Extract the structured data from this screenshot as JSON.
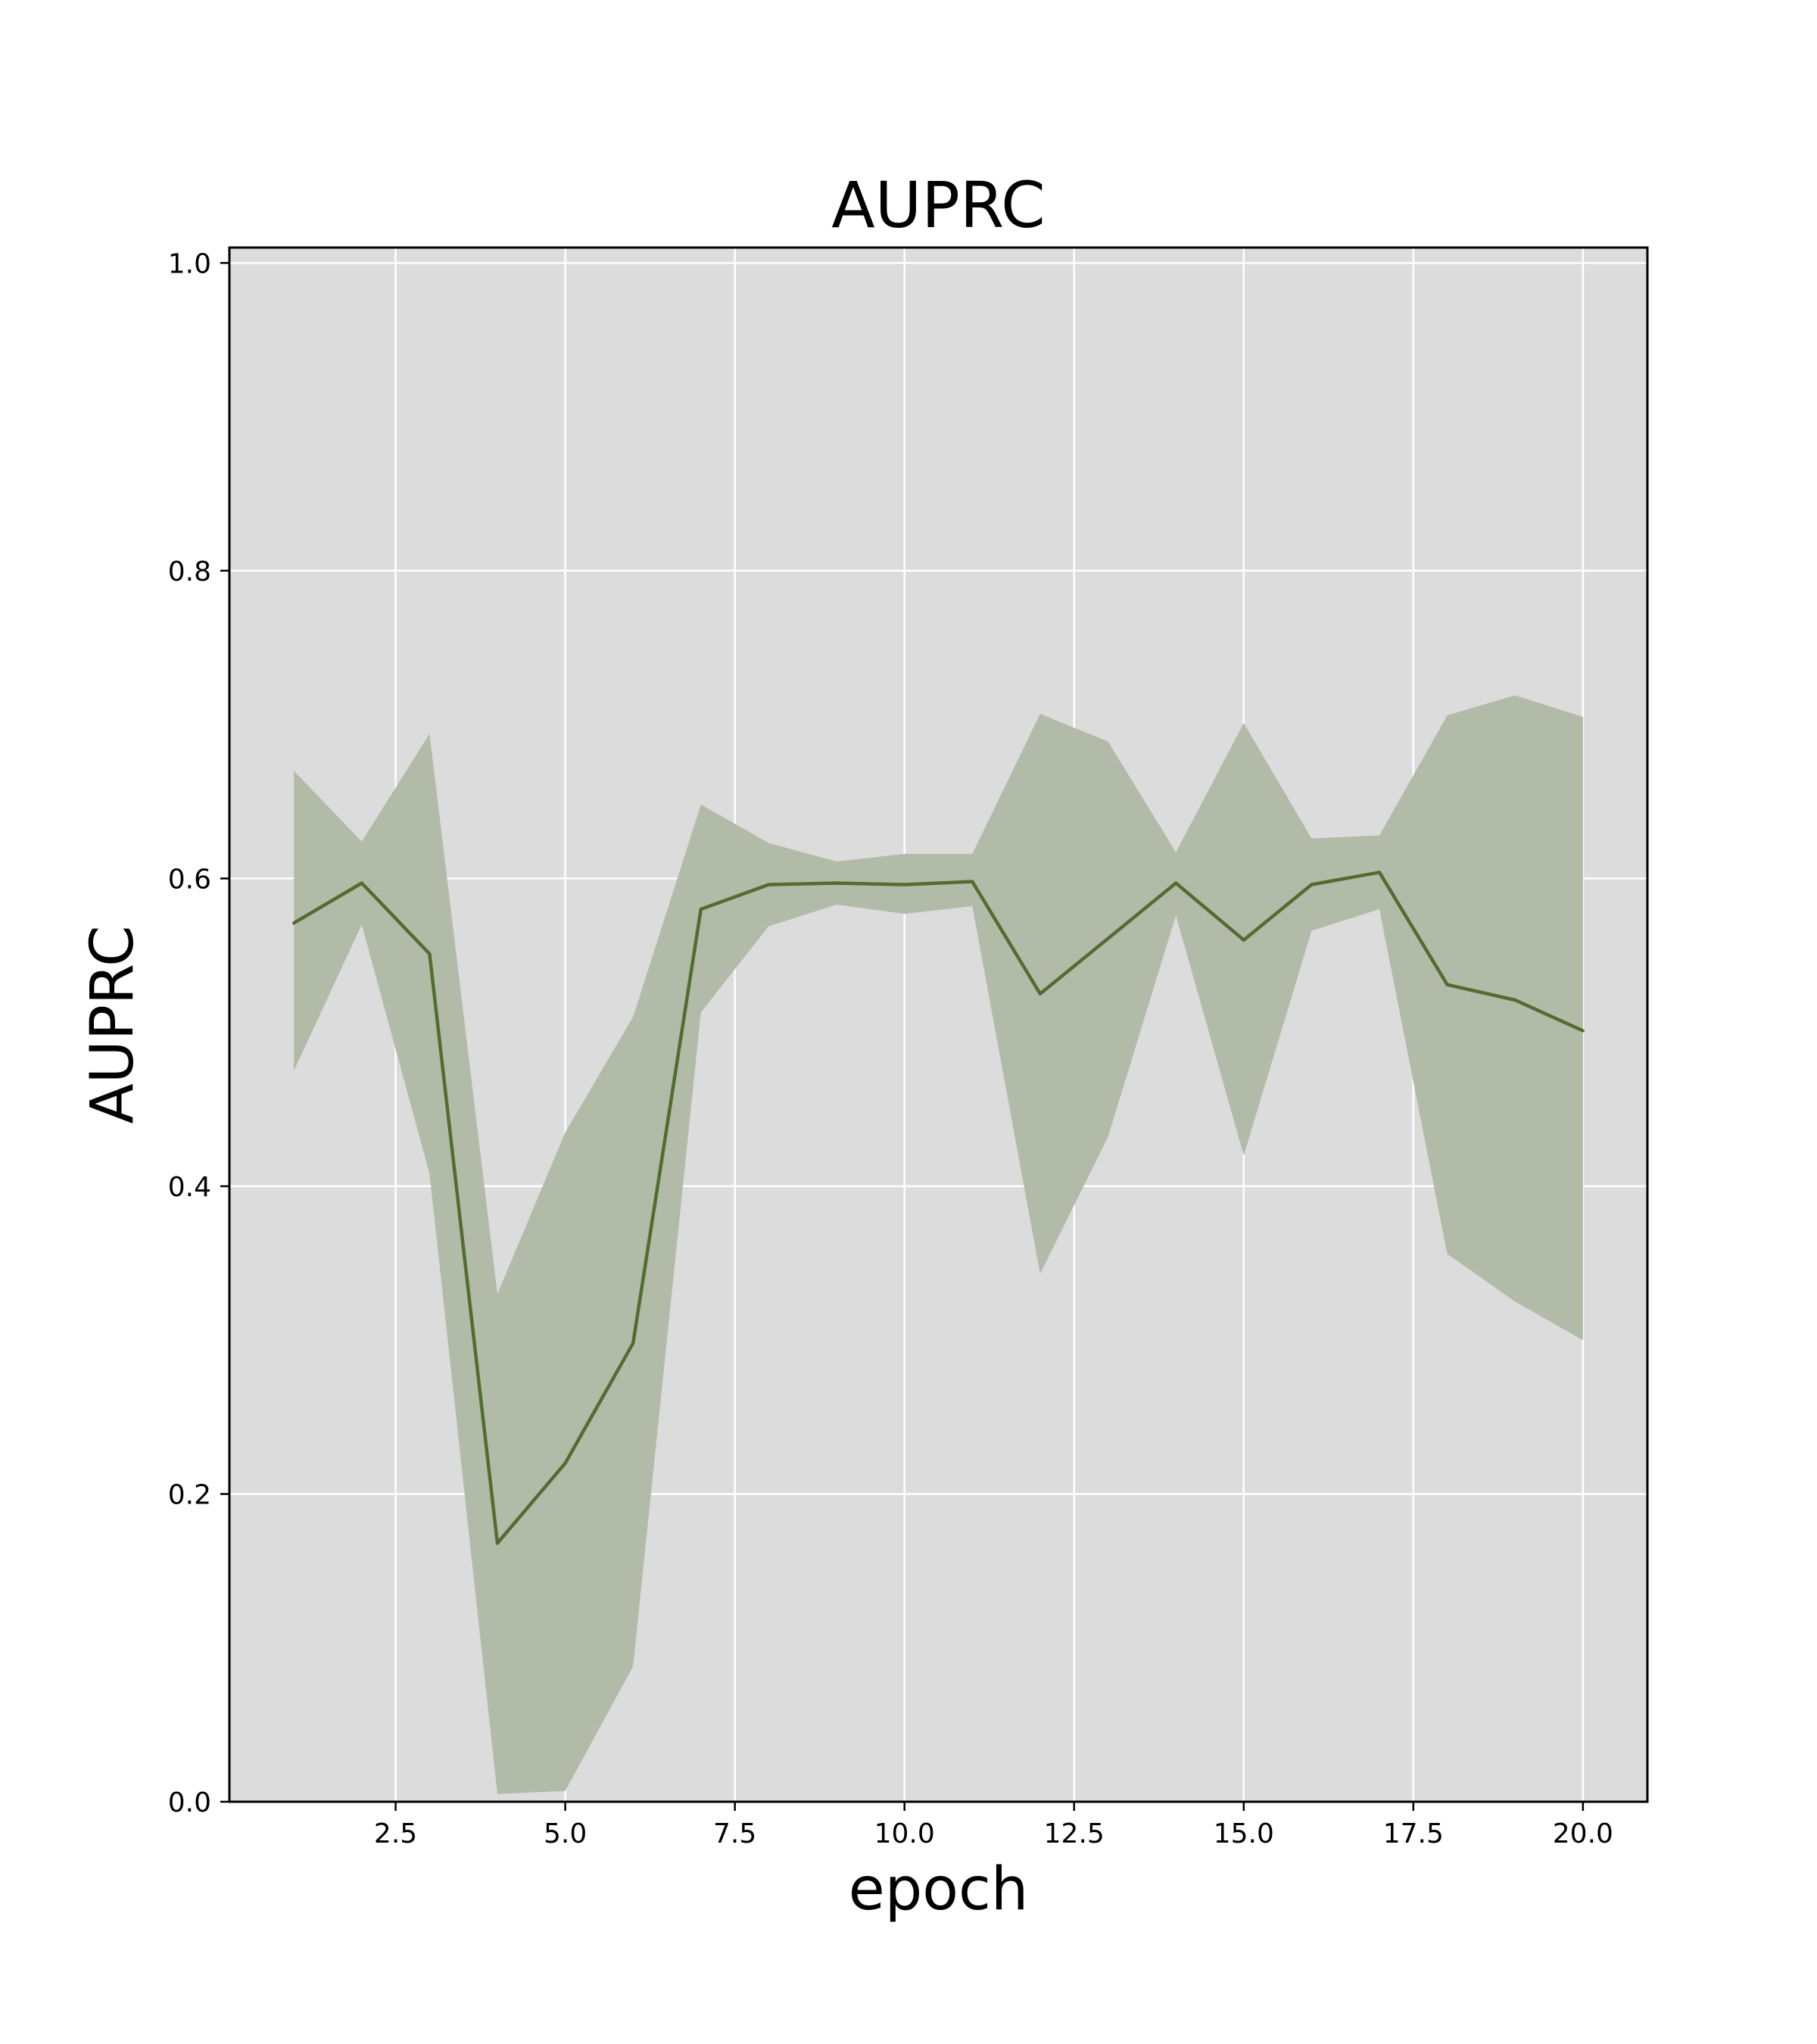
{
  "chart_data": {
    "type": "line",
    "title": "AUPRC",
    "xlabel": "epoch",
    "ylabel": "AUPRC",
    "xlim": [
      0.05,
      20.95
    ],
    "ylim": [
      0.0,
      1.01
    ],
    "grid": true,
    "legend": "none",
    "colors": {
      "line": "#556b2f",
      "band": "#b2bba8",
      "plot_bg": "#dcdcdc",
      "grid": "#ffffff"
    },
    "x_ticks": [
      {
        "value": 2.5,
        "label": "2.5"
      },
      {
        "value": 5.0,
        "label": "5.0"
      },
      {
        "value": 7.5,
        "label": "7.5"
      },
      {
        "value": 10.0,
        "label": "10.0"
      },
      {
        "value": 12.5,
        "label": "12.5"
      },
      {
        "value": 15.0,
        "label": "15.0"
      },
      {
        "value": 17.5,
        "label": "17.5"
      },
      {
        "value": 20.0,
        "label": "20.0"
      }
    ],
    "y_ticks": [
      {
        "value": 0.0,
        "label": "0.0"
      },
      {
        "value": 0.2,
        "label": "0.2"
      },
      {
        "value": 0.4,
        "label": "0.4"
      },
      {
        "value": 0.6,
        "label": "0.6"
      },
      {
        "value": 0.8,
        "label": "0.8"
      },
      {
        "value": 1.0,
        "label": "1.0"
      }
    ],
    "x": [
      1,
      2,
      3,
      4,
      5,
      6,
      7,
      8,
      9,
      10,
      11,
      12,
      13,
      14,
      15,
      16,
      17,
      18,
      19,
      20
    ],
    "series": [
      {
        "values": [
          0.571,
          0.597,
          0.551,
          0.168,
          0.22,
          0.298,
          0.58,
          0.596,
          0.597,
          0.596,
          0.598,
          0.525,
          0.561,
          0.597,
          0.56,
          0.596,
          0.604,
          0.531,
          0.521,
          0.501
        ],
        "upper": [
          0.67,
          0.624,
          0.694,
          0.33,
          0.435,
          0.51,
          0.648,
          0.623,
          0.611,
          0.616,
          0.616,
          0.707,
          0.689,
          0.617,
          0.701,
          0.626,
          0.628,
          0.706,
          0.719,
          0.705
        ],
        "lower": [
          0.475,
          0.57,
          0.408,
          0.005,
          0.007,
          0.088,
          0.513,
          0.569,
          0.583,
          0.577,
          0.582,
          0.343,
          0.432,
          0.576,
          0.42,
          0.566,
          0.58,
          0.356,
          0.325,
          0.3
        ]
      }
    ]
  }
}
